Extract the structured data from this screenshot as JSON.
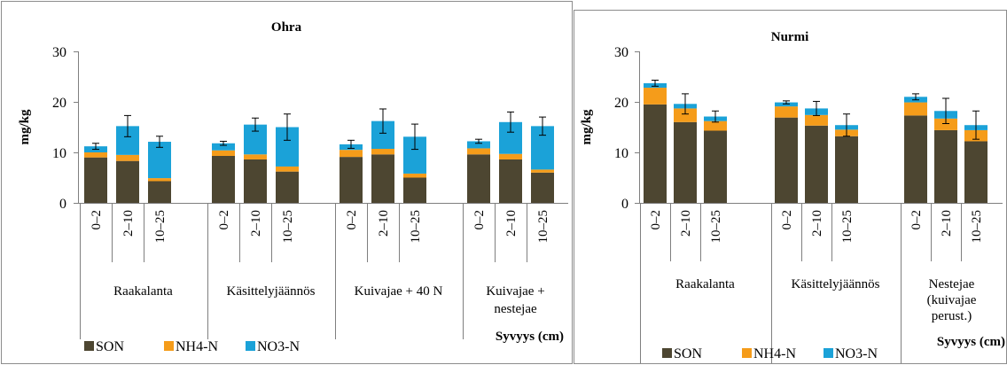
{
  "colors": {
    "SON": "#4d4631",
    "NH4-N": "#f59c1a",
    "NO3-N": "#1ba2d8",
    "frame": "#8c8c8c",
    "axis": "#7f7f7f"
  },
  "chart_data": [
    {
      "type": "bar",
      "stacked": true,
      "title": "Ohra",
      "ylabel": "mg/kg",
      "xlabel": "Syvyys (cm)",
      "ylim": [
        0,
        30
      ],
      "yticks": [
        "0",
        "10",
        "20",
        "30"
      ],
      "grid": false,
      "legend_position": "bottom-left",
      "depth_labels": [
        "0–2",
        "2–10",
        "10–25"
      ],
      "groups": [
        {
          "label": [
            "Raakalanta"
          ],
          "SON": [
            9.0,
            8.3,
            4.3
          ],
          "NH4-N": [
            1.0,
            1.2,
            0.6
          ],
          "NO3-N": [
            1.2,
            5.7,
            7.2
          ],
          "err": [
            0.6,
            2.1,
            1.1
          ]
        },
        {
          "label": [
            "Käsittelyjäännös"
          ],
          "SON": [
            9.3,
            8.6,
            6.2
          ],
          "NH4-N": [
            1.1,
            1.0,
            1.0
          ],
          "NO3-N": [
            1.4,
            5.9,
            7.8
          ],
          "err": [
            0.4,
            1.3,
            2.6
          ]
        },
        {
          "label": [
            "Kuivajae + 40 N"
          ],
          "SON": [
            9.1,
            9.6,
            5.0
          ],
          "NH4-N": [
            1.4,
            1.1,
            0.8
          ],
          "NO3-N": [
            1.1,
            5.5,
            7.3
          ],
          "err": [
            0.8,
            2.4,
            2.5
          ]
        },
        {
          "label": [
            "Kuivajae +",
            "nestejae"
          ],
          "SON": [
            9.6,
            8.6,
            6.0
          ],
          "NH4-N": [
            1.2,
            1.1,
            0.6
          ],
          "NO3-N": [
            1.4,
            6.3,
            8.6
          ],
          "err": [
            0.4,
            2.0,
            1.8
          ]
        }
      ],
      "legend": [
        "SON",
        "NH4-N",
        "NO3-N"
      ]
    },
    {
      "type": "bar",
      "stacked": true,
      "title": "Nurmi",
      "ylabel": "mg/kg",
      "xlabel": "Syvyys (cm)",
      "ylim": [
        0,
        30
      ],
      "yticks": [
        "0",
        "10",
        "20",
        "30"
      ],
      "grid": false,
      "legend_position": "bottom-left",
      "depth_labels": [
        "0–2",
        "2–10",
        "10–25"
      ],
      "groups": [
        {
          "label": [
            "Raakalanta"
          ],
          "SON": [
            19.5,
            16.0,
            14.3
          ],
          "NH4-N": [
            3.3,
            2.7,
            1.9
          ],
          "NO3-N": [
            0.9,
            0.9,
            0.9
          ],
          "err": [
            0.6,
            2.0,
            1.1
          ]
        },
        {
          "label": [
            "Käsittelyjäännös"
          ],
          "SON": [
            16.9,
            15.3,
            13.2
          ],
          "NH4-N": [
            2.2,
            2.1,
            1.3
          ],
          "NO3-N": [
            0.8,
            1.3,
            0.9
          ],
          "err": [
            0.3,
            1.4,
            2.2
          ]
        },
        {
          "label": [
            "Nestejae",
            "(kuivajae",
            "perust.)"
          ],
          "SON": [
            17.3,
            14.4,
            12.2
          ],
          "NH4-N": [
            2.6,
            2.3,
            2.2
          ],
          "NO3-N": [
            1.1,
            1.5,
            1.0
          ],
          "err": [
            0.6,
            2.5,
            2.8
          ]
        }
      ],
      "legend": [
        "SON",
        "NH4-N",
        "NO3-N"
      ]
    }
  ]
}
